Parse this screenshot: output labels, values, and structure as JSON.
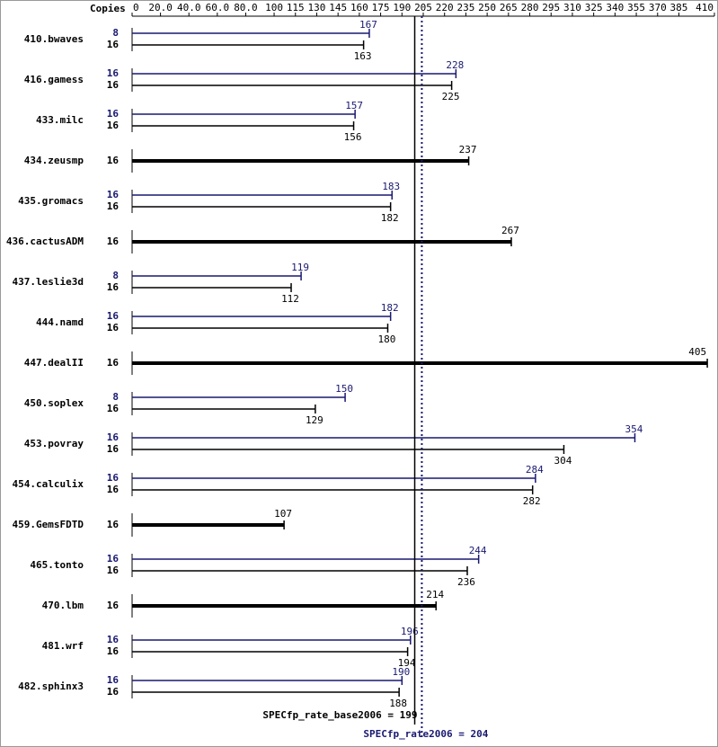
{
  "chart_data": {
    "type": "bar",
    "orientation": "horizontal",
    "axis_label": "Copies",
    "categories": [
      "410.bwaves",
      "416.gamess",
      "433.milc",
      "434.zeusmp",
      "435.gromacs",
      "436.cactusADM",
      "437.leslie3d",
      "444.namd",
      "447.dealII",
      "450.soplex",
      "453.povray",
      "454.calculix",
      "459.GemsFDTD",
      "465.tonto",
      "470.lbm",
      "481.wrf",
      "482.sphinx3"
    ],
    "series": [
      {
        "color": "#191970",
        "copies": [
          8,
          16,
          16,
          null,
          16,
          null,
          8,
          16,
          null,
          8,
          16,
          16,
          null,
          16,
          null,
          16,
          16
        ],
        "values": [
          167,
          228,
          157,
          null,
          183,
          null,
          119,
          182,
          null,
          150,
          354,
          284,
          null,
          244,
          null,
          196,
          190
        ]
      },
      {
        "color": "#000000",
        "copies": [
          16,
          16,
          16,
          16,
          16,
          16,
          16,
          16,
          16,
          16,
          16,
          16,
          16,
          16,
          16,
          16,
          16
        ],
        "values": [
          163,
          225,
          156,
          237,
          182,
          267,
          112,
          180,
          405,
          129,
          304,
          282,
          107,
          236,
          214,
          194,
          188
        ]
      }
    ],
    "xlim": [
      0,
      410
    ],
    "xticks": [
      0,
      {
        "value": 20,
        "label": "20.0"
      },
      {
        "value": 40,
        "label": "40.0"
      },
      {
        "value": 60,
        "label": "60.0"
      },
      {
        "value": 80,
        "label": "80.0"
      },
      100,
      115,
      130,
      145,
      160,
      175,
      190,
      205,
      220,
      235,
      250,
      265,
      280,
      295,
      310,
      325,
      340,
      355,
      370,
      385,
      410
    ],
    "reference_lines": [
      {
        "label": "SPECfp_rate_base2006 = 199",
        "value": 199,
        "color": "#000000",
        "style": "solid"
      },
      {
        "label": "SPECfp_rate2006 = 204",
        "value": 204,
        "color": "#191970",
        "style": "dotted"
      }
    ]
  }
}
